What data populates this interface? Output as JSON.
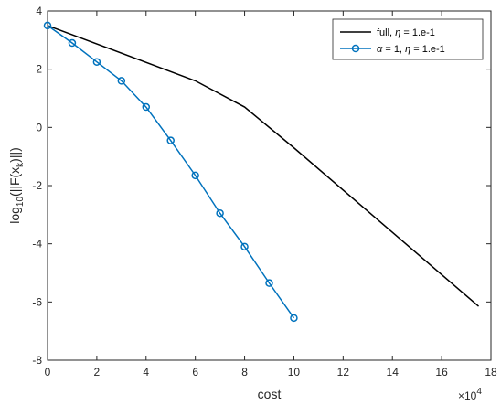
{
  "chart_data": {
    "type": "line",
    "xlabel": "cost",
    "ylabel_main": "log",
    "ylabel_sub": "10",
    "ylabel_rest_a": "(||F(x",
    "ylabel_rest_sub": "k",
    "ylabel_rest_b": ")||)",
    "x_exponent_base": "×10",
    "x_exponent_power": "4",
    "x_scale": 10000,
    "xlim": [
      0,
      180000
    ],
    "ylim": [
      -8,
      4
    ],
    "x_ticks": [
      0,
      20000,
      40000,
      60000,
      80000,
      100000,
      120000,
      140000,
      160000,
      180000
    ],
    "x_tick_labels": [
      "0",
      "2",
      "4",
      "6",
      "8",
      "10",
      "12",
      "14",
      "16",
      "18"
    ],
    "y_ticks": [
      -8,
      -6,
      -4,
      -2,
      0,
      2,
      4
    ],
    "y_tick_labels": [
      "-8",
      "-6",
      "-4",
      "-2",
      "0",
      "2",
      "4"
    ],
    "grid": false,
    "legend_position": "top-right",
    "series": [
      {
        "name_prefix": "full, ",
        "name_greek": "η",
        "name_suffix": " = 1.e-1",
        "color": "#000000",
        "marker": "none",
        "x": [
          0,
          60000,
          80000,
          100000,
          175000
        ],
        "y": [
          3.5,
          1.6,
          0.7,
          -0.7,
          -6.15
        ]
      },
      {
        "name_greek_a": "α",
        "name_mid": " = 1, ",
        "name_greek_b": "η",
        "name_suffix": " = 1.e-1",
        "color": "#0072BD",
        "marker": "circle",
        "x": [
          0,
          10000,
          20000,
          30000,
          40000,
          50000,
          60000,
          70000,
          80000,
          90000,
          100000
        ],
        "y": [
          3.5,
          2.9,
          2.25,
          1.6,
          0.7,
          -0.45,
          -1.65,
          -2.95,
          -4.1,
          -5.35,
          -6.55
        ]
      }
    ]
  }
}
